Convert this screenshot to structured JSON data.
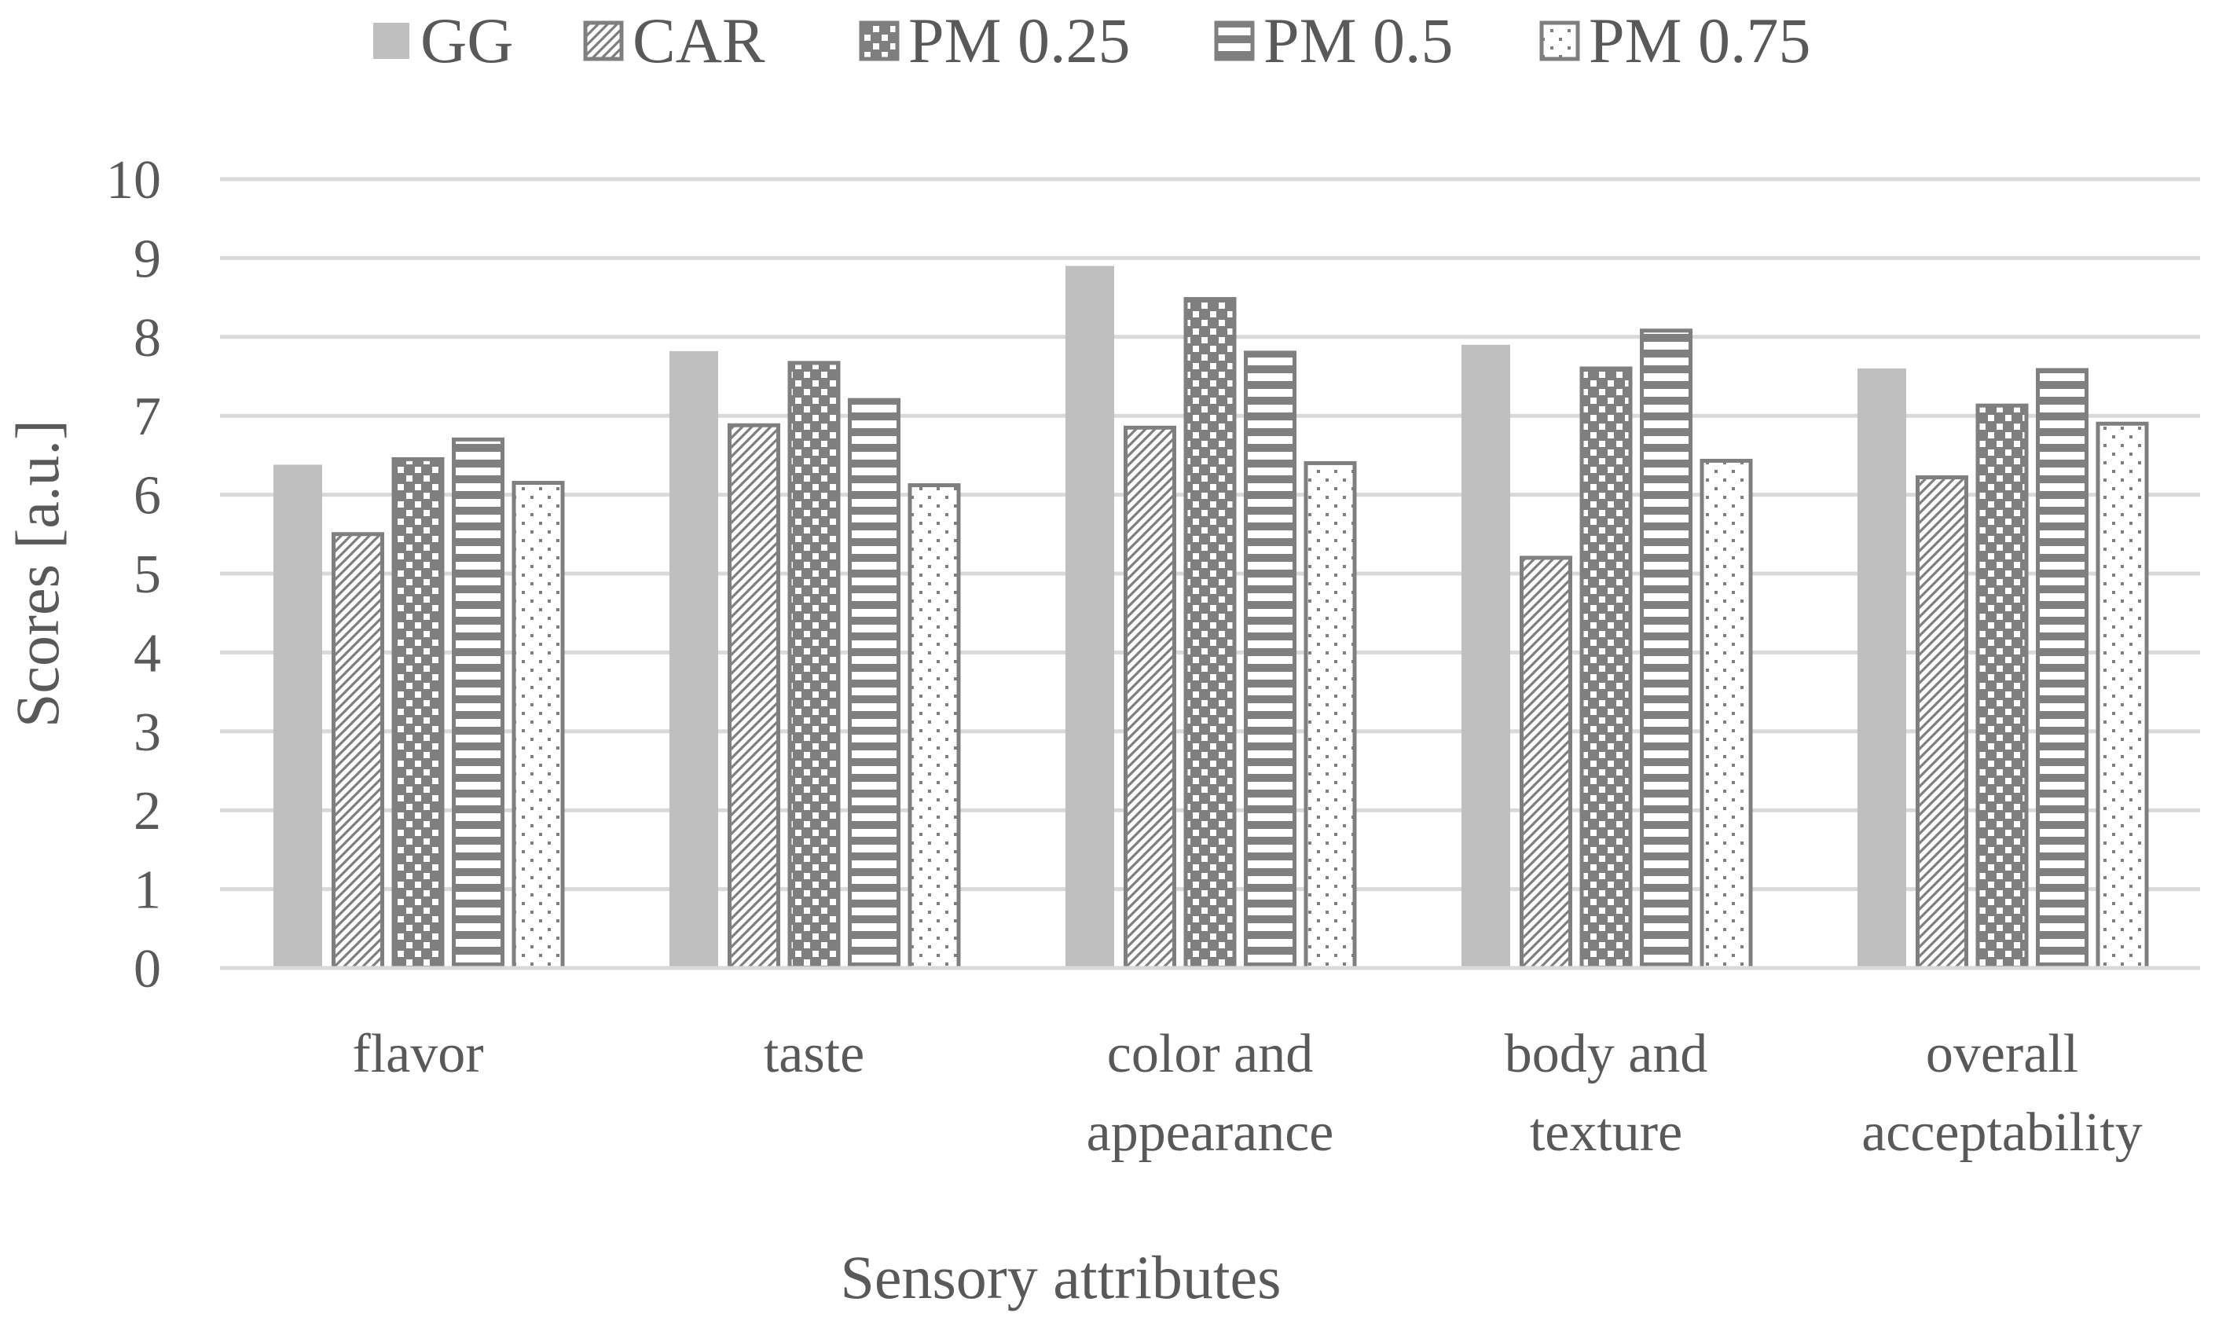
{
  "chart_data": {
    "type": "bar",
    "title": "",
    "xlabel": "Sensory attributes",
    "ylabel": "Scores [a.u.]",
    "ylim": [
      0,
      10
    ],
    "yticks": [
      "0",
      "1",
      "2",
      "3",
      "4",
      "5",
      "6",
      "7",
      "8",
      "9",
      "10"
    ],
    "grid": true,
    "legend_position": "top",
    "categories": [
      [
        "flavor"
      ],
      [
        "taste"
      ],
      [
        "color and",
        "appearance"
      ],
      [
        "body and",
        "texture"
      ],
      [
        "overall",
        "acceptability"
      ]
    ],
    "series": [
      {
        "name": "GG",
        "pattern": "solid",
        "values": [
          6.38,
          7.82,
          8.9,
          7.9,
          7.6
        ]
      },
      {
        "name": "CAR",
        "pattern": "diagonal",
        "values": [
          5.5,
          6.88,
          6.85,
          5.2,
          6.22
        ]
      },
      {
        "name": "PM 0.25",
        "pattern": "checker",
        "values": [
          6.45,
          7.67,
          8.48,
          7.6,
          7.13
        ]
      },
      {
        "name": "PM 0.5",
        "pattern": "horizontal",
        "values": [
          6.7,
          7.2,
          7.8,
          8.08,
          7.58
        ]
      },
      {
        "name": "PM 0.75",
        "pattern": "dotted",
        "values": [
          6.15,
          6.12,
          6.4,
          6.43,
          6.9
        ]
      }
    ],
    "colors": {
      "gg_fill": "#bfbfbf",
      "outline": "#7f7f7f",
      "pattern": "#7f7f7f",
      "grid": "#d9d9d9",
      "text": "#595959"
    }
  }
}
